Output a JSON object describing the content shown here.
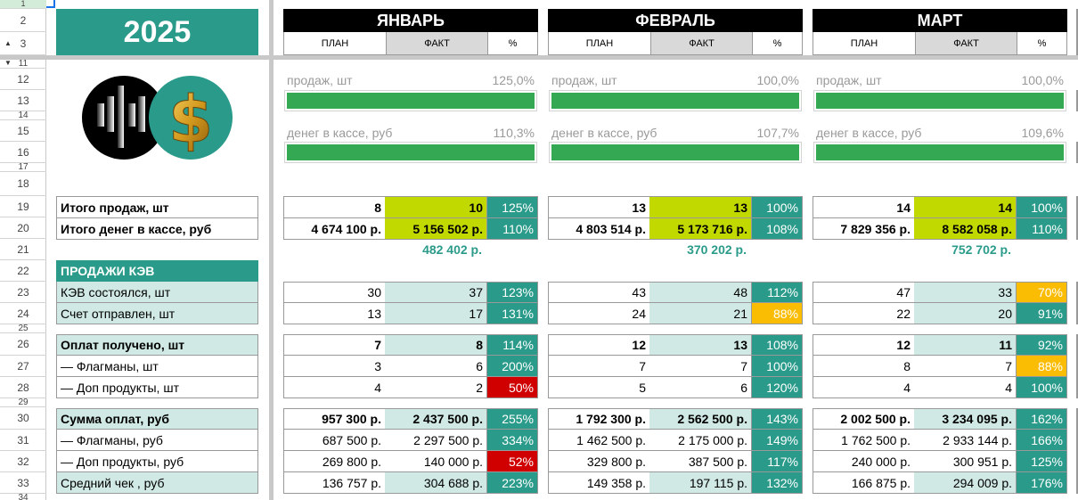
{
  "sheet": {
    "year": "2025",
    "row_numbers": [
      "1",
      "2",
      "3",
      "11",
      "12",
      "13",
      "14",
      "15",
      "16",
      "17",
      "18",
      "19",
      "20",
      "21",
      "22",
      "23",
      "24",
      "25",
      "26",
      "27",
      "28",
      "29",
      "30",
      "31",
      "32",
      "33",
      "34"
    ],
    "column_headers": {
      "plan": "ПЛАН",
      "fact": "ФАКТ",
      "pct": "%"
    },
    "progress_labels": {
      "sales": "продаж, шт",
      "cash": "денег в кассе, руб"
    },
    "row_labels": {
      "total_sales": "Итого продаж, шт",
      "total_cash": "Итого денег в кассе, руб",
      "section": "ПРОДАЖИ КЭВ",
      "kev_done": "КЭВ состоялся, шт",
      "invoice_sent": "Счет отправлен, шт",
      "paid": "Оплат получено, шт",
      "paid_flagship": "— Флагманы, шт",
      "paid_addon": "— Доп продукты, шт",
      "sum_paid": "Сумма оплат, руб",
      "sum_flagship": "— Флагманы, руб",
      "sum_addon": "— Доп продукты, руб",
      "avg_check": "Средний чек , руб"
    },
    "colors": {
      "teal": "#2a9b8a",
      "mint": "#d0e9e4",
      "lime": "#c2d900",
      "red": "#d00000",
      "orange": "#fbbc04",
      "progress_green": "#34a853"
    }
  },
  "months": [
    {
      "name": "ЯНВАРЬ",
      "progress": {
        "sales_pct": "125,0%",
        "sales_fill": 1.0,
        "cash_pct": "110,3%",
        "cash_fill": 1.0
      },
      "total_sales": {
        "plan": "8",
        "fact": "10",
        "pct": "125%",
        "status": "teal"
      },
      "total_cash": {
        "plan": "4 674 100 р.",
        "fact": "5 156 502 р.",
        "pct": "110%",
        "status": "teal"
      },
      "diff": "482 402 р.",
      "kev_done": {
        "plan": "30",
        "fact": "37",
        "pct": "123%",
        "status": "teal"
      },
      "invoice_sent": {
        "plan": "13",
        "fact": "17",
        "pct": "131%",
        "status": "teal"
      },
      "paid": {
        "plan": "7",
        "fact": "8",
        "pct": "114%",
        "status": "teal"
      },
      "paid_flagship": {
        "plan": "3",
        "fact": "6",
        "pct": "200%",
        "status": "teal"
      },
      "paid_addon": {
        "plan": "4",
        "fact": "2",
        "pct": "50%",
        "status": "red"
      },
      "sum_paid": {
        "plan": "957 300 р.",
        "fact": "2 437 500 р.",
        "pct": "255%",
        "status": "teal"
      },
      "sum_flagship": {
        "plan": "687 500 р.",
        "fact": "2 297 500 р.",
        "pct": "334%",
        "status": "teal"
      },
      "sum_addon": {
        "plan": "269 800 р.",
        "fact": "140 000 р.",
        "pct": "52%",
        "status": "red"
      },
      "avg_check": {
        "plan": "136 757 р.",
        "fact": "304 688 р.",
        "pct": "223%",
        "status": "teal"
      }
    },
    {
      "name": "ФЕВРАЛЬ",
      "progress": {
        "sales_pct": "100,0%",
        "sales_fill": 1.0,
        "cash_pct": "107,7%",
        "cash_fill": 1.0
      },
      "total_sales": {
        "plan": "13",
        "fact": "13",
        "pct": "100%",
        "status": "teal"
      },
      "total_cash": {
        "plan": "4 803 514 р.",
        "fact": "5 173 716 р.",
        "pct": "108%",
        "status": "teal"
      },
      "diff": "370 202 р.",
      "kev_done": {
        "plan": "43",
        "fact": "48",
        "pct": "112%",
        "status": "teal"
      },
      "invoice_sent": {
        "plan": "24",
        "fact": "21",
        "pct": "88%",
        "status": "orange"
      },
      "paid": {
        "plan": "12",
        "fact": "13",
        "pct": "108%",
        "status": "teal"
      },
      "paid_flagship": {
        "plan": "7",
        "fact": "7",
        "pct": "100%",
        "status": "teal"
      },
      "paid_addon": {
        "plan": "5",
        "fact": "6",
        "pct": "120%",
        "status": "teal"
      },
      "sum_paid": {
        "plan": "1 792 300 р.",
        "fact": "2 562 500 р.",
        "pct": "143%",
        "status": "teal"
      },
      "sum_flagship": {
        "plan": "1 462 500 р.",
        "fact": "2 175 000 р.",
        "pct": "149%",
        "status": "teal"
      },
      "sum_addon": {
        "plan": "329 800 р.",
        "fact": "387 500 р.",
        "pct": "117%",
        "status": "teal"
      },
      "avg_check": {
        "plan": "149 358 р.",
        "fact": "197 115 р.",
        "pct": "132%",
        "status": "teal"
      }
    },
    {
      "name": "МАРТ",
      "progress": {
        "sales_pct": "100,0%",
        "sales_fill": 1.0,
        "cash_pct": "109,6%",
        "cash_fill": 1.0
      },
      "total_sales": {
        "plan": "14",
        "fact": "14",
        "pct": "100%",
        "status": "teal"
      },
      "total_cash": {
        "plan": "7 829 356 р.",
        "fact": "8 582 058 р.",
        "pct": "110%",
        "status": "teal"
      },
      "diff": "752 702 р.",
      "kev_done": {
        "plan": "47",
        "fact": "33",
        "pct": "70%",
        "status": "orange"
      },
      "invoice_sent": {
        "plan": "22",
        "fact": "20",
        "pct": "91%",
        "status": "teal"
      },
      "paid": {
        "plan": "12",
        "fact": "11",
        "pct": "92%",
        "status": "teal"
      },
      "paid_flagship": {
        "plan": "8",
        "fact": "7",
        "pct": "88%",
        "status": "orange"
      },
      "paid_addon": {
        "plan": "4",
        "fact": "4",
        "pct": "100%",
        "status": "teal"
      },
      "sum_paid": {
        "plan": "2 002 500 р.",
        "fact": "3 234 095 р.",
        "pct": "162%",
        "status": "teal"
      },
      "sum_flagship": {
        "plan": "1 762 500 р.",
        "fact": "2 933 144 р.",
        "pct": "166%",
        "status": "teal"
      },
      "sum_addon": {
        "plan": "240 000 р.",
        "fact": "300 951 р.",
        "pct": "125%",
        "status": "teal"
      },
      "avg_check": {
        "plan": "166 875 р.",
        "fact": "294 009 р.",
        "pct": "176%",
        "status": "teal"
      }
    }
  ]
}
